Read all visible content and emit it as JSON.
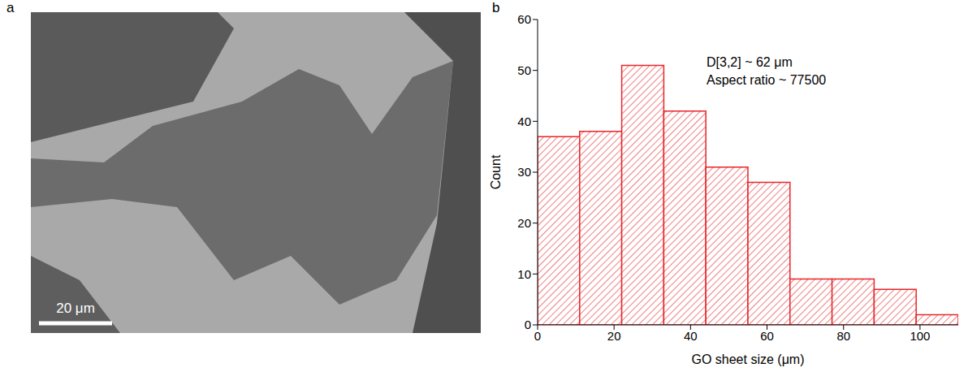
{
  "panel_labels": [
    "a",
    "b"
  ],
  "image": {
    "scale_bar": "20 μm"
  },
  "chart_data": {
    "type": "histogram",
    "bins": [
      0,
      11,
      22,
      33,
      44,
      55,
      66,
      77,
      88,
      99,
      110
    ],
    "values": [
      37,
      38,
      51,
      42,
      31,
      28,
      9,
      9,
      7,
      2
    ],
    "color": "#e8262a",
    "x_label": "GO sheet size (μm)",
    "y_label": "Count",
    "xlim": [
      0,
      110
    ],
    "xticks": [
      0,
      20,
      40,
      60,
      80,
      100
    ],
    "ylim": [
      0,
      60
    ],
    "yticks": [
      0,
      10,
      20,
      30,
      40,
      50,
      60
    ],
    "annotations": [
      "D[3,2] ~ 62 μm",
      "Aspect ratio ~ 77500"
    ],
    "grid": false
  }
}
